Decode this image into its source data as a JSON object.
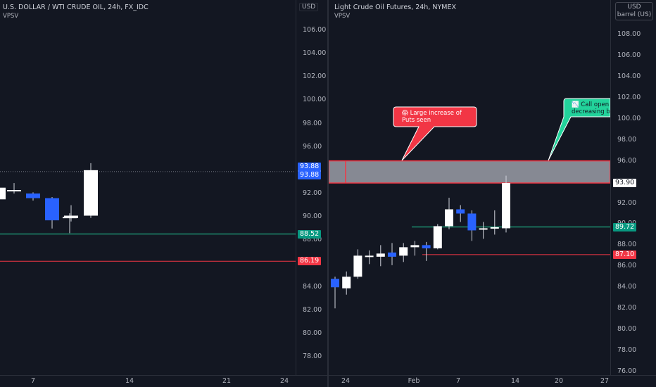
{
  "left_chart": {
    "title": "U.S. DOLLAR / WTI CRUDE OIL, 24h, FX_IDC",
    "indicator": "VPSV",
    "currency": "USD",
    "y_ticks": [
      "106.00",
      "104.00",
      "102.00",
      "100.00",
      "98.00",
      "96.00",
      "92.00",
      "90.00",
      "88.00",
      "84.00",
      "82.00",
      "80.00",
      "78.00"
    ],
    "y_tick_values": [
      106,
      104,
      102,
      100,
      98,
      96,
      92,
      90,
      88,
      84,
      82,
      80,
      78
    ],
    "x_ticks": [
      "7",
      "14",
      "21",
      "24"
    ],
    "tags": [
      {
        "text": "93.88",
        "value": 93.88,
        "bg": "#ffffff",
        "fg": "#131722",
        "offset": 0
      },
      {
        "text": "93.88",
        "value": 93.88,
        "bg": "#2962ff",
        "fg": "#ffffff",
        "offset": 13
      },
      {
        "text": "93.88",
        "value": 93.88,
        "bg": "#2962ff",
        "fg": "#ffffff",
        "offset": 25
      },
      {
        "text": "88.52",
        "value": 88.52,
        "bg": "#089981",
        "fg": "#ffffff",
        "offset": 0
      },
      {
        "text": "86.19",
        "value": 86.19,
        "bg": "#f23645",
        "fg": "#ffffff",
        "offset": 0
      }
    ],
    "green_level": 88.52,
    "red_level": 86.19,
    "dotted_level": 93.88
  },
  "right_chart": {
    "title": "Light Crude Oil Futures, 24h, NYMEX",
    "indicator": "VPSV",
    "currency": "USD",
    "unit": "barrel (US)",
    "y_ticks": [
      "108.00",
      "106.00",
      "104.00",
      "102.00",
      "100.00",
      "98.00",
      "96.00",
      "92.00",
      "90.00",
      "88.00",
      "86.00",
      "84.00",
      "82.00",
      "80.00",
      "78.00",
      "76.00"
    ],
    "y_tick_values": [
      108,
      106,
      104,
      102,
      100,
      98,
      96,
      92,
      90,
      88,
      86,
      84,
      82,
      80,
      78,
      76
    ],
    "x_ticks": [
      "24",
      "Feb",
      "7",
      "14",
      "20",
      "27"
    ],
    "tags": [
      {
        "text": "93.90",
        "value": 93.9,
        "bg": "#ffffff",
        "fg": "#131722"
      },
      {
        "text": "89.72",
        "value": 89.72,
        "bg": "#089981",
        "fg": "#ffffff"
      },
      {
        "text": "87.10",
        "value": 87.1,
        "bg": "#f23645",
        "fg": "#ffffff"
      }
    ],
    "green_level": 89.72,
    "red_level": 87.1,
    "zone": {
      "top": 96.0,
      "bottom": 93.9
    },
    "callout_red": {
      "emoji": "😱",
      "lines": [
        "Large increase of",
        "Puts seen"
      ]
    },
    "callout_green": {
      "emoji": "📉",
      "lines": [
        "Call open",
        "decreasing by"
      ]
    }
  },
  "chart_data": [
    {
      "type": "candlestick",
      "title": "U.S. DOLLAR / WTI CRUDE OIL, 24h, FX_IDC",
      "ylim": [
        77,
        107.5
      ],
      "candles": [
        {
          "o": 91.5,
          "c": 92.5,
          "h": 92.8,
          "l": 91.3,
          "dir": "up"
        },
        {
          "o": 92.2,
          "c": 92.3,
          "h": 92.9,
          "l": 92.0,
          "dir": "up"
        },
        {
          "o": 92.0,
          "c": 91.6,
          "h": 92.1,
          "l": 91.4,
          "dir": "down"
        },
        {
          "o": 91.6,
          "c": 89.7,
          "h": 91.7,
          "l": 89.0,
          "dir": "down"
        },
        {
          "o": 89.9,
          "c": 90.0,
          "h": 90.3,
          "l": 88.6,
          "dir": "up"
        },
        {
          "o": 89.9,
          "c": 90.1,
          "h": 91.0,
          "l": 89.6,
          "dir": "up"
        },
        {
          "o": 90.1,
          "c": 94.0,
          "h": 94.6,
          "l": 89.9,
          "dir": "up"
        }
      ]
    },
    {
      "type": "candlestick",
      "title": "Light Crude Oil Futures, 24h, NYMEX",
      "ylim": [
        75.5,
        109.5
      ],
      "candles": [
        {
          "o": 84.8,
          "c": 84.0,
          "h": 85.0,
          "l": 82.0,
          "dir": "down"
        },
        {
          "o": 83.9,
          "c": 85.0,
          "h": 85.5,
          "l": 83.3,
          "dir": "up"
        },
        {
          "o": 85.0,
          "c": 87.0,
          "h": 87.6,
          "l": 84.8,
          "dir": "up"
        },
        {
          "o": 86.9,
          "c": 87.0,
          "h": 87.5,
          "l": 86.2,
          "dir": "up"
        },
        {
          "o": 86.9,
          "c": 87.2,
          "h": 88.0,
          "l": 86.0,
          "dir": "up"
        },
        {
          "o": 87.3,
          "c": 86.9,
          "h": 88.2,
          "l": 86.1,
          "dir": "down"
        },
        {
          "o": 87.0,
          "c": 87.8,
          "h": 88.2,
          "l": 86.4,
          "dir": "up"
        },
        {
          "o": 87.8,
          "c": 88.0,
          "h": 88.4,
          "l": 87.0,
          "dir": "up"
        },
        {
          "o": 88.0,
          "c": 87.7,
          "h": 88.3,
          "l": 86.5,
          "dir": "down"
        },
        {
          "o": 87.7,
          "c": 89.8,
          "h": 90.0,
          "l": 87.6,
          "dir": "up"
        },
        {
          "o": 89.8,
          "c": 91.4,
          "h": 92.5,
          "l": 89.5,
          "dir": "up"
        },
        {
          "o": 91.4,
          "c": 91.0,
          "h": 91.8,
          "l": 90.2,
          "dir": "down"
        },
        {
          "o": 91.0,
          "c": 89.4,
          "h": 91.3,
          "l": 88.4,
          "dir": "down"
        },
        {
          "o": 89.5,
          "c": 89.6,
          "h": 90.2,
          "l": 88.6,
          "dir": "up"
        },
        {
          "o": 89.6,
          "c": 89.7,
          "h": 91.3,
          "l": 89.0,
          "dir": "up"
        },
        {
          "o": 89.6,
          "c": 93.9,
          "h": 94.6,
          "l": 89.2,
          "dir": "up"
        }
      ]
    }
  ]
}
